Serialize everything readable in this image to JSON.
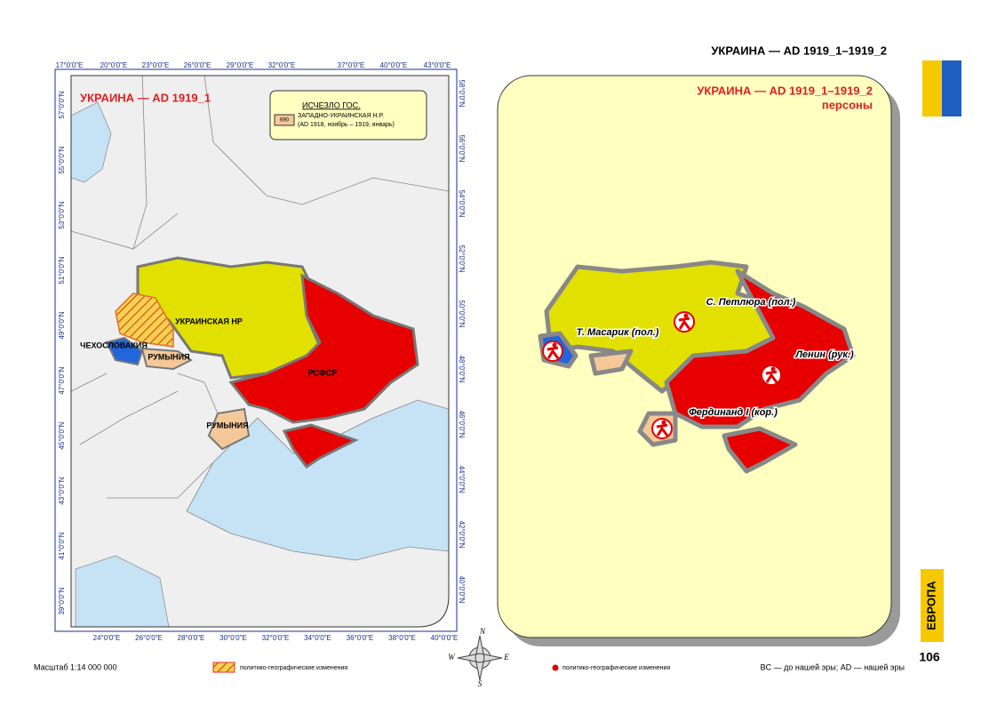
{
  "header": {
    "title": "УКРАИНА — AD 1919_1–1919_2"
  },
  "left_map": {
    "title": "УКРАИНА — AD 1919_1",
    "legend": {
      "title": "ИСЧЕЗЛО ГОС.",
      "code": "690",
      "name": "ЗАПАДНО-УКРАИНСКАЯ Н.Р.",
      "period": "(AD 1918, ноябрь – 1919, январь)"
    },
    "labels": [
      "УКРАИНСКАЯ НР",
      "ЧЕХОСЛОВАКИЯ",
      "РУМЫНИЯ",
      "РСФСР",
      "РУМЫНИЯ"
    ],
    "top_ticks": [
      "17°0'0\"E",
      "20°0'0\"E",
      "23°0'0\"E",
      "26°0'0\"E",
      "29°0'0\"E",
      "32°0'0\"E",
      "37°0'0\"E",
      "40°0'0\"E",
      "43°0'0\"E"
    ],
    "bottom_ticks": [
      "24°0'0\"E",
      "26°0'0\"E",
      "28°0'0\"E",
      "30°0'0\"E",
      "32°0'0\"E",
      "34°0'0\"E",
      "36°0'0\"E",
      "38°0'0\"E",
      "40°0'0\"E"
    ],
    "left_ticks": [
      "57°0'0\"N",
      "55°0'0\"N",
      "53°0'0\"N",
      "51°0'0\"N",
      "49°0'0\"N",
      "47°0'0\"N",
      "45°0'0\"N",
      "43°0'0\"N",
      "41°0'0\"N",
      "39°0'0\"N"
    ],
    "right_ticks": [
      "58°0'0\"N",
      "56°0'0\"N",
      "54°0'0\"N",
      "52°0'0\"N",
      "50°0'0\"N",
      "48°0'0\"N",
      "46°0'0\"N",
      "44°0'0\"N",
      "42°0'0\"N",
      "40°0'0\"N"
    ]
  },
  "right_map": {
    "title": "УКРАИНА — AD 1919_1–1919_2",
    "subtitle": "персоны",
    "persons": [
      "Т. Масарик (пол.)",
      "С. Петлюра (пол.)",
      "Ленин (рук.)",
      "Фердинанд I (кор.)"
    ]
  },
  "compass": [
    "N",
    "W",
    "E",
    "S"
  ],
  "footer": {
    "scale": "Масштаб 1:14 000 000",
    "legend_left": "политико-географические изменения",
    "legend_right": "политико-географические изменения",
    "note": "BC — до нашей эры; AD — нашей эры",
    "page": "106",
    "section": "ЕВРОПА"
  }
}
